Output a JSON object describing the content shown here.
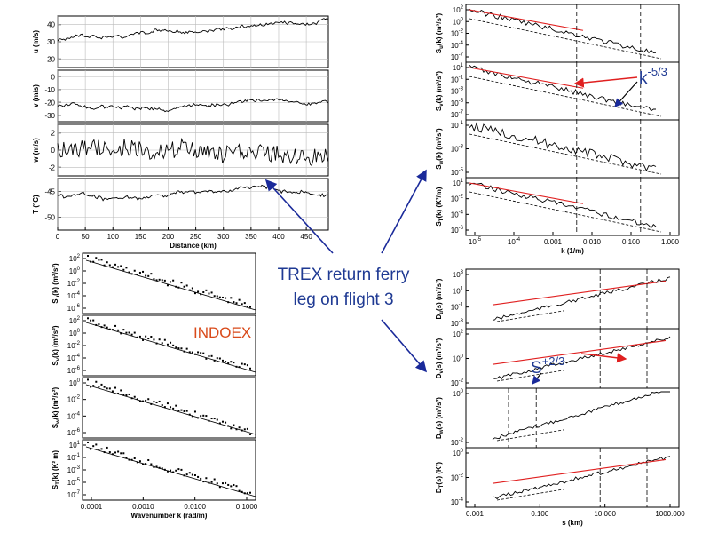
{
  "center_title_lines": [
    "TREX return ferry",
    "leg on flight 3"
  ],
  "indoex_label": "INDOEX",
  "annotation_k": {
    "base": "k",
    "exp": "-5/3"
  },
  "annotation_s": {
    "base": "S",
    "exp": "+2/3"
  },
  "colors": {
    "arrow": "#1a2a9a",
    "fit": "#e02020",
    "data": "#000000",
    "title": "#1f3a93",
    "indoex": "#d94a1a"
  },
  "chart_data": [
    {
      "id": "timeseries",
      "type": "line",
      "xlabel": "Distance (km)",
      "x_ticks": [
        "0",
        "50",
        "100",
        "150",
        "200",
        "250",
        "300",
        "350",
        "400",
        "450"
      ],
      "xlim": [
        0,
        490
      ],
      "panels": [
        {
          "ylabel": "u (m/s)",
          "y_ticks": [
            "20",
            "30",
            "40"
          ],
          "ylim": [
            15,
            40
          ],
          "grid": true
        },
        {
          "ylabel": "v (m/s)",
          "y_ticks": [
            "-30",
            "-20",
            "-10",
            "0"
          ],
          "ylim": [
            -30,
            2
          ],
          "grid": true
        },
        {
          "ylabel": "w (m/s)",
          "y_ticks": [
            "-2",
            "0",
            "2"
          ],
          "ylim": [
            -3,
            3
          ],
          "grid": true
        },
        {
          "ylabel": "T (°C)",
          "y_ticks": [
            "-50",
            "-45"
          ],
          "ylim": [
            -51,
            -42
          ],
          "grid": true
        }
      ]
    },
    {
      "id": "indoex_spectra",
      "type": "scatter",
      "xscale": "log",
      "xlabel": "Wavenumber k (rad/m)",
      "x_ticks": [
        "0.0001",
        "0.0010",
        "0.0100",
        "0.1000"
      ],
      "panels": [
        {
          "ylabel": "S_u(k) (m²/s²)",
          "y_ticks": [
            "10^2",
            "10^0",
            "10^-2",
            "10^-4",
            "10^-6"
          ]
        },
        {
          "ylabel": "S_v(k) (m²/s²)",
          "y_ticks": [
            "10^2",
            "10^0",
            "10^-2",
            "10^-4",
            "10^-6"
          ]
        },
        {
          "ylabel": "S_w(k) (m²/s²)",
          "y_ticks": [
            "10^0",
            "10^-2",
            "10^-4",
            "10^-6"
          ]
        },
        {
          "ylabel": "S_T(k) (K² m)",
          "y_ticks": [
            "10^1",
            "10^-1",
            "10^-3",
            "10^-5",
            "10^-7"
          ]
        }
      ]
    },
    {
      "id": "trex_spectra",
      "type": "line",
      "xscale": "log",
      "xlabel": "k (1/m)",
      "x_ticks": [
        "10^-5",
        "10^-4",
        "0.001",
        "0.010",
        "0.100",
        "1.000"
      ],
      "panels": [
        {
          "ylabel": "S_u(k) (m³/s²)",
          "y_ticks": [
            "10^2",
            "10^0",
            "10^-2",
            "10^-4",
            "10^-7"
          ]
        },
        {
          "ylabel": "S_v(k) (m³/s²)",
          "y_ticks": [
            "10^1",
            "10^-1",
            "10^-3",
            "10^-5",
            "10^-7"
          ]
        },
        {
          "ylabel": "S_w(k) (m³/s²)",
          "y_ticks": [
            "10^-1",
            "10^-3",
            "10^-5"
          ]
        },
        {
          "ylabel": "S_T(k) (K²/m)",
          "y_ticks": [
            "10^1",
            "10^-2",
            "10^-4",
            "10^-6"
          ]
        }
      ]
    },
    {
      "id": "trex_structure",
      "type": "line",
      "xscale": "log",
      "xlabel": "s (km)",
      "x_ticks": [
        "0.001",
        "0.100",
        "10.000",
        "1000.000"
      ],
      "panels": [
        {
          "ylabel": "D_u(s) (m²/s²)",
          "y_ticks": [
            "10^3",
            "10^1",
            "10^-1",
            "10^-3"
          ]
        },
        {
          "ylabel": "D_v(s) (m²/s²)",
          "y_ticks": [
            "10^2",
            "10^0",
            "10^-2"
          ]
        },
        {
          "ylabel": "D_w(s) (m²/s²)",
          "y_ticks": [
            "10^0",
            "10^-2"
          ]
        },
        {
          "ylabel": "D_T(s) (K²)",
          "y_ticks": [
            "10^0",
            "10^-2",
            "10^-4"
          ]
        }
      ]
    }
  ]
}
